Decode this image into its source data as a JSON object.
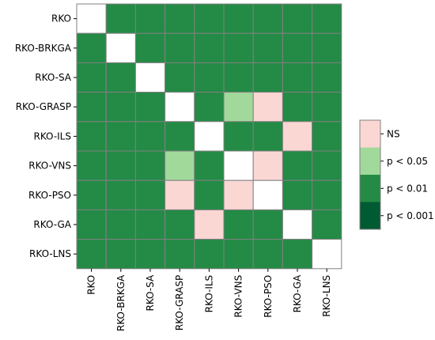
{
  "chart_data": {
    "type": "heatmap",
    "rows": [
      "RKO",
      "RKO-BRKGA",
      "RKO-SA",
      "RKO-GRASP",
      "RKO-ILS",
      "RKO-VNS",
      "RKO-PSO",
      "RKO-GA",
      "RKO-LNS"
    ],
    "columns": [
      "RKO",
      "RKO-BRKGA",
      "RKO-SA",
      "RKO-GRASP",
      "RKO-ILS",
      "RKO-VNS",
      "RKO-PSO",
      "RKO-GA",
      "RKO-LNS"
    ],
    "cell_values": [
      [
        "diag",
        "p < 0.01",
        "p < 0.01",
        "p < 0.01",
        "p < 0.01",
        "p < 0.01",
        "p < 0.01",
        "p < 0.01",
        "p < 0.01"
      ],
      [
        "p < 0.01",
        "diag",
        "p < 0.01",
        "p < 0.01",
        "p < 0.01",
        "p < 0.01",
        "p < 0.01",
        "p < 0.01",
        "p < 0.01"
      ],
      [
        "p < 0.01",
        "p < 0.01",
        "diag",
        "p < 0.01",
        "p < 0.01",
        "p < 0.01",
        "p < 0.01",
        "p < 0.01",
        "p < 0.01"
      ],
      [
        "p < 0.01",
        "p < 0.01",
        "p < 0.01",
        "diag",
        "p < 0.01",
        "p < 0.05",
        "NS",
        "p < 0.01",
        "p < 0.01"
      ],
      [
        "p < 0.01",
        "p < 0.01",
        "p < 0.01",
        "p < 0.01",
        "diag",
        "p < 0.01",
        "p < 0.01",
        "NS",
        "p < 0.01"
      ],
      [
        "p < 0.01",
        "p < 0.01",
        "p < 0.01",
        "p < 0.05",
        "p < 0.01",
        "diag",
        "NS",
        "p < 0.01",
        "p < 0.01"
      ],
      [
        "p < 0.01",
        "p < 0.01",
        "p < 0.01",
        "NS",
        "p < 0.01",
        "NS",
        "diag",
        "p < 0.01",
        "p < 0.01"
      ],
      [
        "p < 0.01",
        "p < 0.01",
        "p < 0.01",
        "p < 0.01",
        "NS",
        "p < 0.01",
        "p < 0.01",
        "diag",
        "p < 0.01"
      ],
      [
        "p < 0.01",
        "p < 0.01",
        "p < 0.01",
        "p < 0.01",
        "p < 0.01",
        "p < 0.01",
        "p < 0.01",
        "p < 0.01",
        "diag"
      ]
    ],
    "legend": {
      "placement": "right",
      "entries": [
        {
          "label": "NS",
          "color": "#fbd7d4"
        },
        {
          "label": "p < 0.05",
          "color": "#a1d99b"
        },
        {
          "label": "p < 0.01",
          "color": "#238b45"
        },
        {
          "label": "p < 0.001",
          "color": "#005a32"
        }
      ]
    },
    "diagonal_color": "#ffffff",
    "grid_color": "#808080"
  }
}
